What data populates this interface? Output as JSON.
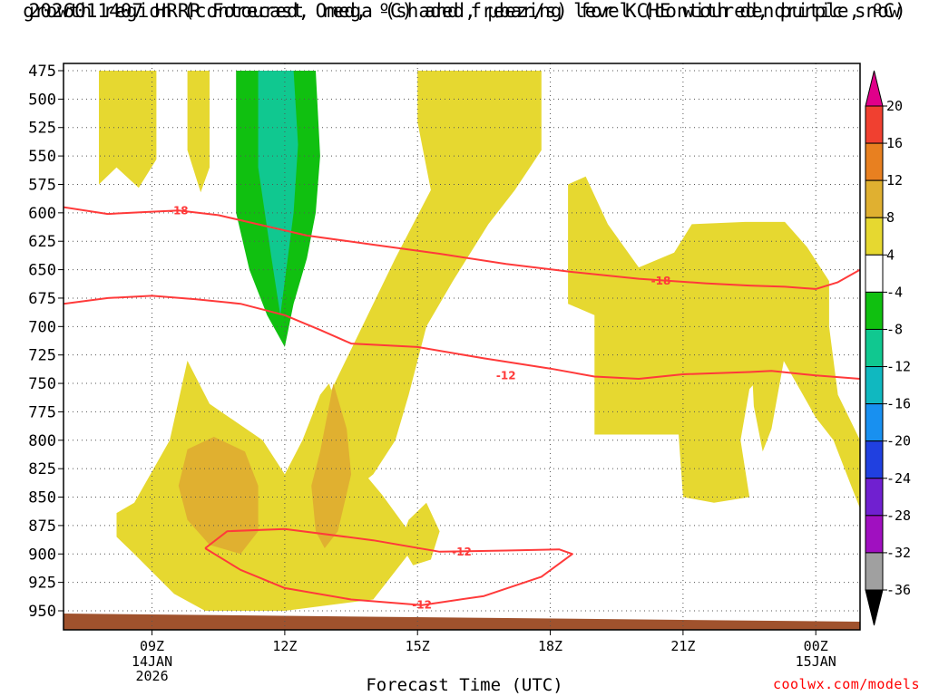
{
  "chart_data": {
    "type": "contour",
    "title_line1": "2026011407 HRRR Forecast Omega (shaded, μbar/s) for KCHE with dendritic snow",
    "title_line2": "growth region (contoured, red, ºC) and freezing level (contoured, purple, ºC)",
    "xlabel": "Forecast Time (UTC)",
    "credit": "coolwx.com/models",
    "x_ticks": [
      {
        "hour": 9,
        "label": "09Z",
        "sub": [
          "14JAN",
          "2026"
        ]
      },
      {
        "hour": 12,
        "label": "12Z",
        "sub": []
      },
      {
        "hour": 15,
        "label": "15Z",
        "sub": []
      },
      {
        "hour": 18,
        "label": "18Z",
        "sub": []
      },
      {
        "hour": 21,
        "label": "21Z",
        "sub": []
      },
      {
        "hour": 24,
        "label": "00Z",
        "sub": [
          "15JAN"
        ]
      }
    ],
    "x_range_hours": [
      7,
      25
    ],
    "y_range_mb": [
      475,
      960
    ],
    "y_ticks": [
      475,
      500,
      525,
      550,
      575,
      600,
      625,
      650,
      675,
      700,
      725,
      750,
      775,
      800,
      825,
      850,
      875,
      900,
      925,
      950
    ],
    "colorbar": {
      "bins": [
        {
          "from": 20,
          "to": null,
          "color": "#e0008a"
        },
        {
          "from": 16,
          "to": 20,
          "color": "#f04030"
        },
        {
          "from": 12,
          "to": 16,
          "color": "#e88020"
        },
        {
          "from": 8,
          "to": 12,
          "color": "#e0b030"
        },
        {
          "from": 4,
          "to": 8,
          "color": "#e6d830"
        },
        {
          "from": -4,
          "to": 4,
          "color": "#ffffff"
        },
        {
          "from": -8,
          "to": -4,
          "color": "#10c010"
        },
        {
          "from": -12,
          "to": -8,
          "color": "#10c890"
        },
        {
          "from": -16,
          "to": -12,
          "color": "#10b8c0"
        },
        {
          "from": -20,
          "to": -16,
          "color": "#1890f0"
        },
        {
          "from": -24,
          "to": -20,
          "color": "#2040e0"
        },
        {
          "from": -28,
          "to": -24,
          "color": "#7020d0"
        },
        {
          "from": -32,
          "to": -28,
          "color": "#a010c0"
        },
        {
          "from": -36,
          "to": -32,
          "color": "#a0a0a0"
        },
        {
          "from": null,
          "to": -36,
          "color": "#000000"
        }
      ],
      "labels": [
        20,
        16,
        12,
        8,
        4,
        -4,
        -8,
        -12,
        -16,
        -20,
        -24,
        -28,
        -32,
        -36
      ]
    },
    "contour_labels": [
      {
        "value": "-18",
        "hour": 9.6,
        "mb": 598
      },
      {
        "value": "-18",
        "hour": 20.5,
        "mb": 660
      },
      {
        "value": "-12",
        "hour": 17.0,
        "mb": 743
      },
      {
        "value": "-12",
        "hour": 16.0,
        "mb": 898
      },
      {
        "value": "-12",
        "hour": 15.1,
        "mb": 945
      }
    ],
    "isotherms": [
      {
        "name": "-18 C",
        "color": "#ff3a3a",
        "points": [
          [
            7,
            595
          ],
          [
            8,
            601
          ],
          [
            9,
            599
          ],
          [
            9.6,
            598
          ],
          [
            10.5,
            602
          ],
          [
            11.5,
            611
          ],
          [
            12.5,
            620
          ],
          [
            14,
            628
          ],
          [
            15.5,
            636
          ],
          [
            17,
            645
          ],
          [
            18.5,
            652
          ],
          [
            20,
            658
          ],
          [
            21.5,
            662
          ],
          [
            22.5,
            664
          ],
          [
            23.3,
            665
          ],
          [
            24,
            667
          ],
          [
            24.5,
            661
          ],
          [
            25,
            650
          ]
        ]
      },
      {
        "name": "-12 C upper",
        "color": "#ff3a3a",
        "points": [
          [
            7,
            680
          ],
          [
            8,
            675
          ],
          [
            9,
            673
          ],
          [
            10,
            676
          ],
          [
            11,
            680
          ],
          [
            12,
            690
          ],
          [
            12.8,
            703
          ],
          [
            13.5,
            715
          ],
          [
            15,
            718
          ],
          [
            16.5,
            728
          ],
          [
            18,
            737
          ],
          [
            19,
            744
          ],
          [
            20,
            746
          ],
          [
            21,
            742
          ],
          [
            22.5,
            740
          ],
          [
            23,
            739
          ],
          [
            24,
            743
          ],
          [
            25,
            746
          ]
        ]
      },
      {
        "name": "-12 C lower closed",
        "color": "#ff3a3a",
        "points": [
          [
            10.2,
            895
          ],
          [
            10.7,
            880
          ],
          [
            12,
            878
          ],
          [
            14,
            888
          ],
          [
            15.5,
            898
          ],
          [
            17,
            897
          ],
          [
            18.2,
            896
          ],
          [
            18.5,
            900
          ],
          [
            17.8,
            920
          ],
          [
            16.5,
            937
          ],
          [
            15.1,
            945
          ],
          [
            13.5,
            940
          ],
          [
            12,
            930
          ],
          [
            11,
            914
          ],
          [
            10.2,
            895
          ]
        ]
      }
    ],
    "omega_regions": [
      {
        "color": "#e6d830",
        "points": [
          [
            7.8,
            475
          ],
          [
            9.1,
            475
          ],
          [
            9.1,
            553
          ],
          [
            8.7,
            578
          ],
          [
            8.2,
            560
          ],
          [
            7.8,
            575
          ]
        ]
      },
      {
        "color": "#e6d830",
        "points": [
          [
            9.8,
            475
          ],
          [
            10.3,
            475
          ],
          [
            10.3,
            560
          ],
          [
            10.1,
            582
          ],
          [
            9.8,
            545
          ]
        ]
      },
      {
        "color": "#e6d830",
        "points": [
          [
            12.3,
            475
          ],
          [
            12.5,
            475
          ],
          [
            12.4,
            480
          ]
        ]
      },
      {
        "color": "#e6d830",
        "points": [
          [
            15.0,
            475
          ],
          [
            17.8,
            475
          ],
          [
            17.8,
            545
          ],
          [
            17.2,
            580
          ],
          [
            16.6,
            610
          ],
          [
            15.8,
            660
          ],
          [
            15.2,
            700
          ],
          [
            14.8,
            760
          ],
          [
            14.5,
            800
          ],
          [
            14.0,
            830
          ],
          [
            13.2,
            855
          ],
          [
            12.7,
            880
          ],
          [
            12.0,
            880
          ],
          [
            12.8,
            820
          ],
          [
            13.0,
            760
          ],
          [
            13.5,
            720
          ],
          [
            14.5,
            640
          ],
          [
            15.3,
            580
          ],
          [
            15.0,
            520
          ]
        ]
      },
      {
        "color": "#e6d830",
        "points": [
          [
            8.2,
            864
          ],
          [
            8.6,
            855
          ],
          [
            9.4,
            800
          ],
          [
            9.8,
            730
          ],
          [
            10.3,
            768
          ],
          [
            11.5,
            800
          ],
          [
            12.0,
            830
          ],
          [
            12.4,
            800
          ],
          [
            12.8,
            760
          ],
          [
            13.0,
            750
          ],
          [
            13.6,
            820
          ],
          [
            14.2,
            848
          ],
          [
            14.8,
            880
          ],
          [
            15.2,
            880
          ],
          [
            14.8,
            900
          ],
          [
            14.0,
            940
          ],
          [
            12.0,
            950
          ],
          [
            10.2,
            950
          ],
          [
            9.5,
            935
          ],
          [
            8.6,
            900
          ],
          [
            8.2,
            885
          ]
        ]
      },
      {
        "color": "#e6d830",
        "points": [
          [
            14.8,
            870
          ],
          [
            15.2,
            855
          ],
          [
            15.5,
            880
          ],
          [
            15.3,
            905
          ],
          [
            14.9,
            910
          ],
          [
            14.6,
            890
          ]
        ]
      },
      {
        "color": "#e6d830",
        "points": [
          [
            18.4,
            575
          ],
          [
            18.8,
            568
          ],
          [
            19.3,
            610
          ],
          [
            20.0,
            648
          ],
          [
            20.8,
            635
          ],
          [
            21.2,
            610
          ],
          [
            22.4,
            608
          ],
          [
            23.3,
            608
          ],
          [
            23.8,
            630
          ],
          [
            24.3,
            660
          ],
          [
            24.3,
            700
          ],
          [
            24.5,
            760
          ],
          [
            25.0,
            800
          ],
          [
            25,
            850
          ],
          [
            25,
            860
          ],
          [
            24.8,
            840
          ],
          [
            24.4,
            800
          ],
          [
            24.0,
            780
          ],
          [
            23.2,
            725
          ],
          [
            22.5,
            755
          ],
          [
            22.3,
            800
          ],
          [
            22.5,
            850
          ],
          [
            21.7,
            855
          ],
          [
            21.0,
            850
          ],
          [
            20.9,
            795
          ],
          [
            19.0,
            795
          ],
          [
            19.0,
            690
          ],
          [
            18.4,
            680
          ]
        ]
      },
      {
        "color": "#e6d830",
        "points": [
          [
            22.5,
            690
          ],
          [
            23.1,
            680
          ],
          [
            23.3,
            725
          ],
          [
            23.0,
            790
          ],
          [
            22.8,
            810
          ],
          [
            22.6,
            770
          ]
        ]
      },
      {
        "color": "#10c010",
        "points": [
          [
            10.9,
            475
          ],
          [
            12.7,
            475
          ],
          [
            12.8,
            550
          ],
          [
            12.7,
            600
          ],
          [
            12.5,
            640
          ],
          [
            12.2,
            680
          ],
          [
            12.0,
            718
          ],
          [
            11.6,
            690
          ],
          [
            11.2,
            650
          ],
          [
            10.9,
            600
          ],
          [
            10.9,
            540
          ]
        ]
      },
      {
        "color": "#10c890",
        "points": [
          [
            11.4,
            475
          ],
          [
            12.2,
            475
          ],
          [
            12.3,
            540
          ],
          [
            12.2,
            600
          ],
          [
            12.0,
            660
          ],
          [
            11.9,
            690
          ],
          [
            11.7,
            640
          ],
          [
            11.4,
            560
          ]
        ]
      },
      {
        "color": "#e0b030",
        "points": [
          [
            9.8,
            808
          ],
          [
            10.4,
            797
          ],
          [
            11.1,
            810
          ],
          [
            11.4,
            840
          ],
          [
            11.4,
            880
          ],
          [
            11.0,
            900
          ],
          [
            10.3,
            892
          ],
          [
            9.8,
            870
          ],
          [
            9.6,
            840
          ]
        ]
      },
      {
        "color": "#e0b030",
        "points": [
          [
            12.8,
            810
          ],
          [
            13.1,
            750
          ],
          [
            13.4,
            790
          ],
          [
            13.5,
            830
          ],
          [
            13.2,
            880
          ],
          [
            12.9,
            895
          ],
          [
            12.7,
            880
          ],
          [
            12.6,
            840
          ]
        ]
      }
    ]
  }
}
